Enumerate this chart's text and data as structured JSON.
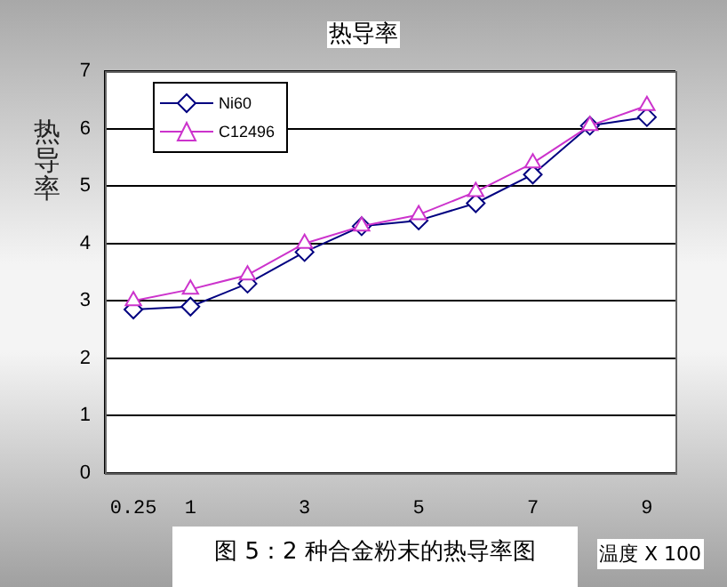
{
  "chart_data": {
    "type": "line",
    "title": "热导率",
    "ylabel": "热导率",
    "xlabel": "温度 X 100",
    "annotations": [
      "图 5：2 种合金粉末的热导率图"
    ],
    "categories": [
      "0.25",
      "1",
      null,
      "3",
      null,
      "5",
      null,
      "7",
      null,
      "9"
    ],
    "series": [
      {
        "name": "Ni60",
        "color": "#000080",
        "marker": "diamond",
        "values": [
          2.85,
          2.9,
          3.3,
          3.85,
          4.3,
          4.4,
          4.7,
          5.2,
          6.05,
          6.2
        ]
      },
      {
        "name": "C12496",
        "color": "#cc33cc",
        "marker": "triangle",
        "values": [
          3.0,
          3.2,
          3.45,
          4.0,
          4.3,
          4.5,
          4.9,
          5.4,
          6.05,
          6.4
        ]
      }
    ],
    "ylim": [
      0,
      7
    ],
    "yticks": [
      0,
      1,
      2,
      3,
      4,
      5,
      6,
      7
    ],
    "grid": "y",
    "legend": "top left",
    "line_style": "solid"
  }
}
